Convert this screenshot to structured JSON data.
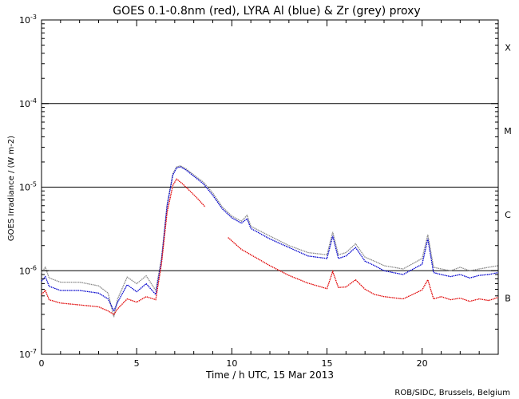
{
  "chart_data": {
    "type": "line",
    "title": "GOES 0.1-0.8nm (red), LYRA Al (blue) & Zr (grey) proxy",
    "xlabel": "Time / h UTC, 15 Mar 2013",
    "ylabel": "GOES Irradiance / (W m-2)",
    "credit": "ROB/SIDC, Brussels, Belgium",
    "xlim": [
      0,
      24
    ],
    "ylim": [
      1e-07,
      0.001
    ],
    "yscale": "log",
    "x_ticks": [
      0,
      5,
      10,
      15,
      20
    ],
    "y_ticks": [
      {
        "value": 1e-07,
        "base": "10",
        "exp": "-7"
      },
      {
        "value": 1e-06,
        "base": "10",
        "exp": "-6"
      },
      {
        "value": 1e-05,
        "base": "10",
        "exp": "-5"
      },
      {
        "value": 0.0001,
        "base": "10",
        "exp": "-4"
      },
      {
        "value": 0.001,
        "base": "10",
        "exp": "-3"
      }
    ],
    "flare_class_lines": [
      1e-06,
      1e-05,
      0.0001
    ],
    "flare_classes": [
      {
        "label": "B",
        "value": 4.7e-07
      },
      {
        "label": "C",
        "value": 4.7e-06
      },
      {
        "label": "M",
        "value": 4.7e-05
      },
      {
        "label": "X",
        "value": 0.00047
      }
    ],
    "series": [
      {
        "name": "GOES 0.1-0.8nm",
        "color": "#e00000",
        "x": [
          0.0,
          0.2,
          0.4,
          1.0,
          2.0,
          3.0,
          3.5,
          3.8,
          4.0,
          4.5,
          5.0,
          5.5,
          6.0,
          6.3,
          6.6,
          6.9,
          7.1,
          7.4,
          7.8,
          8.2,
          8.6,
          null,
          9.8,
          10.5,
          10.7,
          10.9,
          12.0,
          13.0,
          14.0,
          15.0,
          15.3,
          15.6,
          16.0,
          16.5,
          17.0,
          17.5,
          18.0,
          19.0,
          19.5,
          20.0,
          20.3,
          20.6,
          21.0,
          21.5,
          22.0,
          22.5,
          23.0,
          23.5,
          24.0
        ],
        "values": [
          5.2e-07,
          5.8e-07,
          4.5e-07,
          4.1e-07,
          3.9e-07,
          3.7e-07,
          3.3e-07,
          3e-07,
          3.5e-07,
          4.6e-07,
          4.2e-07,
          4.9e-07,
          4.5e-07,
          1.2e-06,
          5e-06,
          1.05e-05,
          1.25e-05,
          1.1e-05,
          9e-06,
          7.3e-06,
          5.8e-06,
          null,
          2.5e-06,
          1.8e-06,
          1.7e-06,
          1.6e-06,
          1.15e-06,
          8.8e-07,
          7.1e-07,
          6.1e-07,
          9.8e-07,
          6.3e-07,
          6.4e-07,
          7.8e-07,
          6e-07,
          5.2e-07,
          4.9e-07,
          4.6e-07,
          5.2e-07,
          5.9e-07,
          7.8e-07,
          4.6e-07,
          4.9e-07,
          4.5e-07,
          4.7e-07,
          4.3e-07,
          4.6e-07,
          4.4e-07,
          4.8e-07
        ]
      },
      {
        "name": "LYRA Al proxy",
        "color": "#0000cc",
        "x": [
          0.0,
          0.2,
          0.4,
          1.0,
          2.0,
          3.0,
          3.5,
          3.8,
          4.0,
          4.5,
          5.0,
          5.5,
          6.0,
          6.3,
          6.6,
          6.9,
          7.1,
          7.3,
          7.6,
          8.0,
          8.5,
          9.0,
          9.5,
          10.0,
          10.5,
          10.8,
          11.0,
          12.0,
          13.0,
          14.0,
          15.0,
          15.3,
          15.6,
          16.0,
          16.5,
          17.0,
          17.5,
          18.0,
          19.0,
          20.0,
          20.3,
          20.6,
          21.0,
          21.5,
          22.0,
          22.5,
          23.0,
          23.5,
          24.0
        ],
        "values": [
          7.5e-07,
          8.5e-07,
          6.5e-07,
          5.8e-07,
          5.8e-07,
          5.4e-07,
          4.6e-07,
          3.3e-07,
          4.2e-07,
          6.8e-07,
          5.6e-07,
          7e-07,
          5.2e-07,
          1.3e-06,
          6e-06,
          1.4e-05,
          1.7e-05,
          1.75e-05,
          1.6e-05,
          1.35e-05,
          1.1e-05,
          8e-06,
          5.5e-06,
          4.3e-06,
          3.7e-06,
          4.2e-06,
          3.2e-06,
          2.4e-06,
          1.9e-06,
          1.5e-06,
          1.4e-06,
          2.6e-06,
          1.4e-06,
          1.5e-06,
          1.9e-06,
          1.3e-06,
          1.15e-06,
          1e-06,
          9e-07,
          1.2e-06,
          2.4e-06,
          9.5e-07,
          9e-07,
          8.5e-07,
          9e-07,
          8.2e-07,
          8.8e-07,
          9e-07,
          9.5e-07
        ]
      },
      {
        "name": "LYRA Zr proxy",
        "color": "#888888",
        "x": [
          0.0,
          0.2,
          0.4,
          1.0,
          2.0,
          3.0,
          3.5,
          3.8,
          4.0,
          4.5,
          5.0,
          5.5,
          6.0,
          6.3,
          6.6,
          6.9,
          7.1,
          7.3,
          7.6,
          8.0,
          8.5,
          9.0,
          9.5,
          10.0,
          10.5,
          10.8,
          11.0,
          12.0,
          13.0,
          14.0,
          15.0,
          15.3,
          15.6,
          16.0,
          16.5,
          17.0,
          17.5,
          18.0,
          19.0,
          20.0,
          20.3,
          20.6,
          21.0,
          21.5,
          22.0,
          22.5,
          23.0,
          23.5,
          24.0
        ],
        "values": [
          9.5e-07,
          1.1e-06,
          8.2e-07,
          7.3e-07,
          7.3e-07,
          6.6e-07,
          5.4e-07,
          2.8e-07,
          4.6e-07,
          8.4e-07,
          7e-07,
          8.7e-07,
          5.8e-07,
          1.4e-06,
          6.2e-06,
          1.45e-05,
          1.75e-05,
          1.8e-05,
          1.65e-05,
          1.4e-05,
          1.15e-05,
          8.5e-06,
          5.8e-06,
          4.5e-06,
          3.9e-06,
          4.6e-06,
          3.4e-06,
          2.6e-06,
          2e-06,
          1.65e-06,
          1.55e-06,
          2.9e-06,
          1.55e-06,
          1.65e-06,
          2.1e-06,
          1.45e-06,
          1.3e-06,
          1.15e-06,
          1.05e-06,
          1.4e-06,
          2.7e-06,
          1.1e-06,
          1.05e-06,
          1e-06,
          1.1e-06,
          1e-06,
          1.05e-06,
          1.1e-06,
          1.15e-06
        ]
      }
    ]
  }
}
